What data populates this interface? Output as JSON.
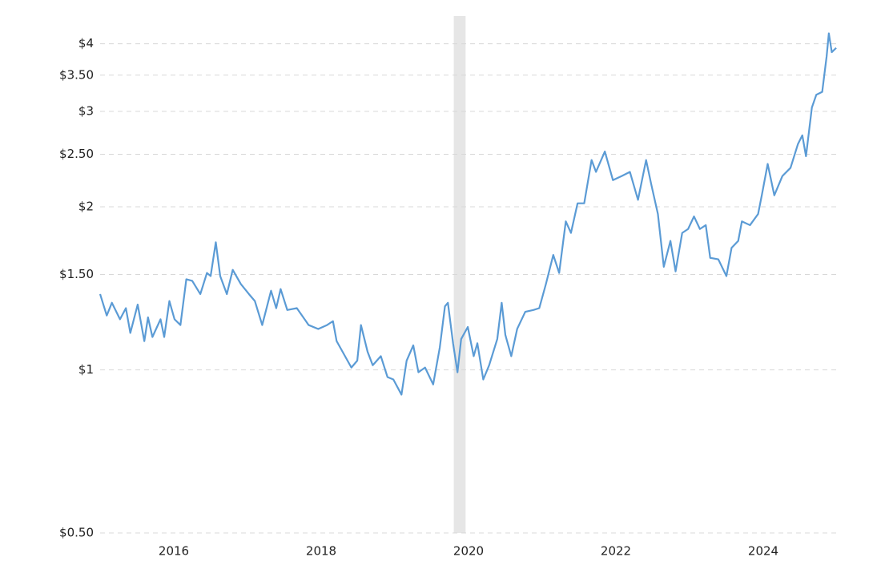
{
  "chart_data": {
    "type": "line",
    "log_scale": true,
    "grid": true,
    "color": "#5b9bd5",
    "shade_color": "#e6e6e6",
    "shaded_range": [
      2019.8,
      2019.96
    ],
    "xlim": [
      2015,
      2025
    ],
    "xticks": [
      2016,
      2018,
      2020,
      2022,
      2024
    ],
    "ylim": [
      0.5,
      4.5
    ],
    "yticks": [
      {
        "value": 0.5,
        "label": "$0.50"
      },
      {
        "value": 1,
        "label": "$1"
      },
      {
        "value": 1.5,
        "label": "$1.50"
      },
      {
        "value": 2,
        "label": "$2"
      },
      {
        "value": 2.5,
        "label": "$2.50"
      },
      {
        "value": 3,
        "label": "$3"
      },
      {
        "value": 3.5,
        "label": "$3.50"
      },
      {
        "value": 4,
        "label": "$4"
      }
    ],
    "x": [
      2015.0,
      2015.09,
      2015.16,
      2015.27,
      2015.35,
      2015.41,
      2015.51,
      2015.6,
      2015.65,
      2015.71,
      2015.82,
      2015.87,
      2015.94,
      2016.01,
      2016.09,
      2016.17,
      2016.25,
      2016.36,
      2016.45,
      2016.5,
      2016.57,
      2016.63,
      2016.72,
      2016.8,
      2016.91,
      2017.02,
      2017.1,
      2017.2,
      2017.32,
      2017.39,
      2017.45,
      2017.54,
      2017.67,
      2017.83,
      2017.96,
      2018.08,
      2018.16,
      2018.21,
      2018.41,
      2018.49,
      2018.54,
      2018.63,
      2018.7,
      2018.81,
      2018.9,
      2018.98,
      2019.09,
      2019.16,
      2019.25,
      2019.32,
      2019.41,
      2019.52,
      2019.61,
      2019.68,
      2019.72,
      2019.79,
      2019.85,
      2019.9,
      2019.99,
      2020.07,
      2020.12,
      2020.2,
      2020.28,
      2020.39,
      2020.45,
      2020.5,
      2020.58,
      2020.66,
      2020.77,
      2020.88,
      2020.96,
      2021.05,
      2021.15,
      2021.23,
      2021.32,
      2021.39,
      2021.48,
      2021.57,
      2021.67,
      2021.73,
      2021.85,
      2021.96,
      2022.08,
      2022.19,
      2022.3,
      2022.41,
      2022.48,
      2022.57,
      2022.65,
      2022.74,
      2022.81,
      2022.9,
      2022.98,
      2023.06,
      2023.14,
      2023.22,
      2023.28,
      2023.39,
      2023.5,
      2023.57,
      2023.66,
      2023.71,
      2023.82,
      2023.93,
      2023.98,
      2024.06,
      2024.15,
      2024.26,
      2024.37,
      2024.47,
      2024.53,
      2024.58,
      2024.66,
      2024.72,
      2024.8,
      2024.86,
      2024.89,
      2024.93,
      2024.99
    ],
    "values": [
      1.38,
      1.26,
      1.33,
      1.24,
      1.3,
      1.17,
      1.32,
      1.13,
      1.25,
      1.15,
      1.24,
      1.15,
      1.34,
      1.24,
      1.21,
      1.47,
      1.46,
      1.38,
      1.51,
      1.49,
      1.72,
      1.49,
      1.38,
      1.53,
      1.44,
      1.38,
      1.34,
      1.21,
      1.4,
      1.3,
      1.41,
      1.29,
      1.3,
      1.21,
      1.19,
      1.21,
      1.23,
      1.13,
      1.01,
      1.04,
      1.21,
      1.08,
      1.02,
      1.06,
      0.97,
      0.96,
      0.9,
      1.04,
      1.11,
      0.99,
      1.01,
      0.94,
      1.1,
      1.31,
      1.33,
      1.12,
      0.99,
      1.14,
      1.2,
      1.06,
      1.12,
      0.96,
      1.02,
      1.14,
      1.33,
      1.16,
      1.06,
      1.19,
      1.28,
      1.29,
      1.3,
      1.44,
      1.63,
      1.51,
      1.88,
      1.79,
      2.03,
      2.03,
      2.44,
      2.32,
      2.53,
      2.24,
      2.28,
      2.32,
      2.06,
      2.44,
      2.2,
      1.94,
      1.55,
      1.73,
      1.52,
      1.79,
      1.82,
      1.92,
      1.82,
      1.85,
      1.61,
      1.6,
      1.49,
      1.68,
      1.73,
      1.88,
      1.85,
      1.94,
      2.1,
      2.4,
      2.1,
      2.28,
      2.36,
      2.61,
      2.71,
      2.48,
      3.05,
      3.22,
      3.26,
      3.79,
      4.18,
      3.86,
      3.93
    ]
  }
}
